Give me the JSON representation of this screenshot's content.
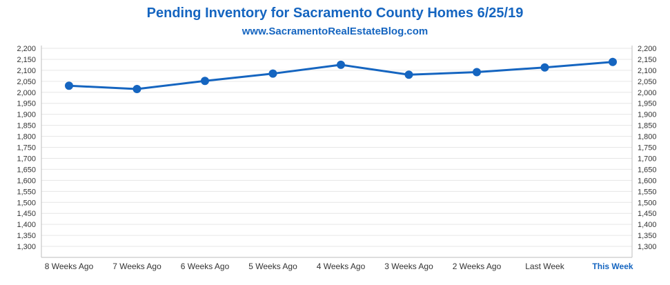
{
  "chart_data": {
    "type": "line",
    "title": "Pending Inventory for Sacramento County Homes 6/25/19",
    "subtitle": "www.SacramentoRealEstateBlog.com",
    "categories": [
      "8 Weeks Ago",
      "7 Weeks Ago",
      "6 Weeks Ago",
      "5 Weeks Ago",
      "4 Weeks Ago",
      "3 Weeks Ago",
      "2 Weeks Ago",
      "Last Week",
      "This Week"
    ],
    "highlight_category": "This Week",
    "values": [
      2030,
      2015,
      2052,
      2085,
      2125,
      2080,
      2092,
      2113,
      2138
    ],
    "ylim": [
      1250,
      2200
    ],
    "yticks": [
      "2,200",
      "2,150",
      "2,100",
      "2,050",
      "2,000",
      "1,950",
      "1,900",
      "1,850",
      "1,800",
      "1,750",
      "1,700",
      "1,650",
      "1,600",
      "1,550",
      "1,500",
      "1,450",
      "1,400",
      "1,350",
      "1,300"
    ],
    "ytick_values": [
      2200,
      2150,
      2100,
      2050,
      2000,
      1950,
      1900,
      1850,
      1800,
      1750,
      1700,
      1650,
      1600,
      1550,
      1500,
      1450,
      1400,
      1350,
      1300
    ],
    "grid": true,
    "line_color": "#1565c0",
    "grid_color": "#e6e6e6",
    "highlight_color": "#1565c0"
  }
}
